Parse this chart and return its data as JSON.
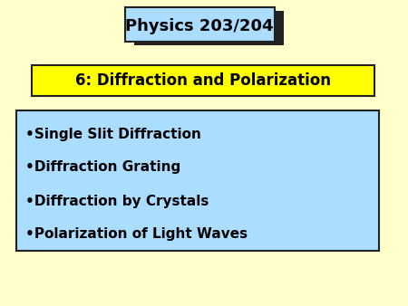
{
  "background_color": "#ffffcc",
  "title_text": "Physics 203/204",
  "title_box_color": "#aaddff",
  "title_shadow_color": "#222222",
  "subtitle_text": "6: Diffraction and Polarization",
  "subtitle_box_color": "#ffff00",
  "subtitle_border_color": "#222222",
  "bullet_box_color": "#aaddff",
  "bullet_box_border_color": "#222222",
  "bullet_items": [
    "Single Slit Diffraction",
    "Diffraction Grating",
    "Diffraction by Crystals",
    "Polarization of Light Waves"
  ],
  "text_color": "#000000",
  "title_fontsize": 13,
  "subtitle_fontsize": 12,
  "bullet_fontsize": 11,
  "fig_width": 4.5,
  "fig_height": 3.38,
  "dpi": 100
}
